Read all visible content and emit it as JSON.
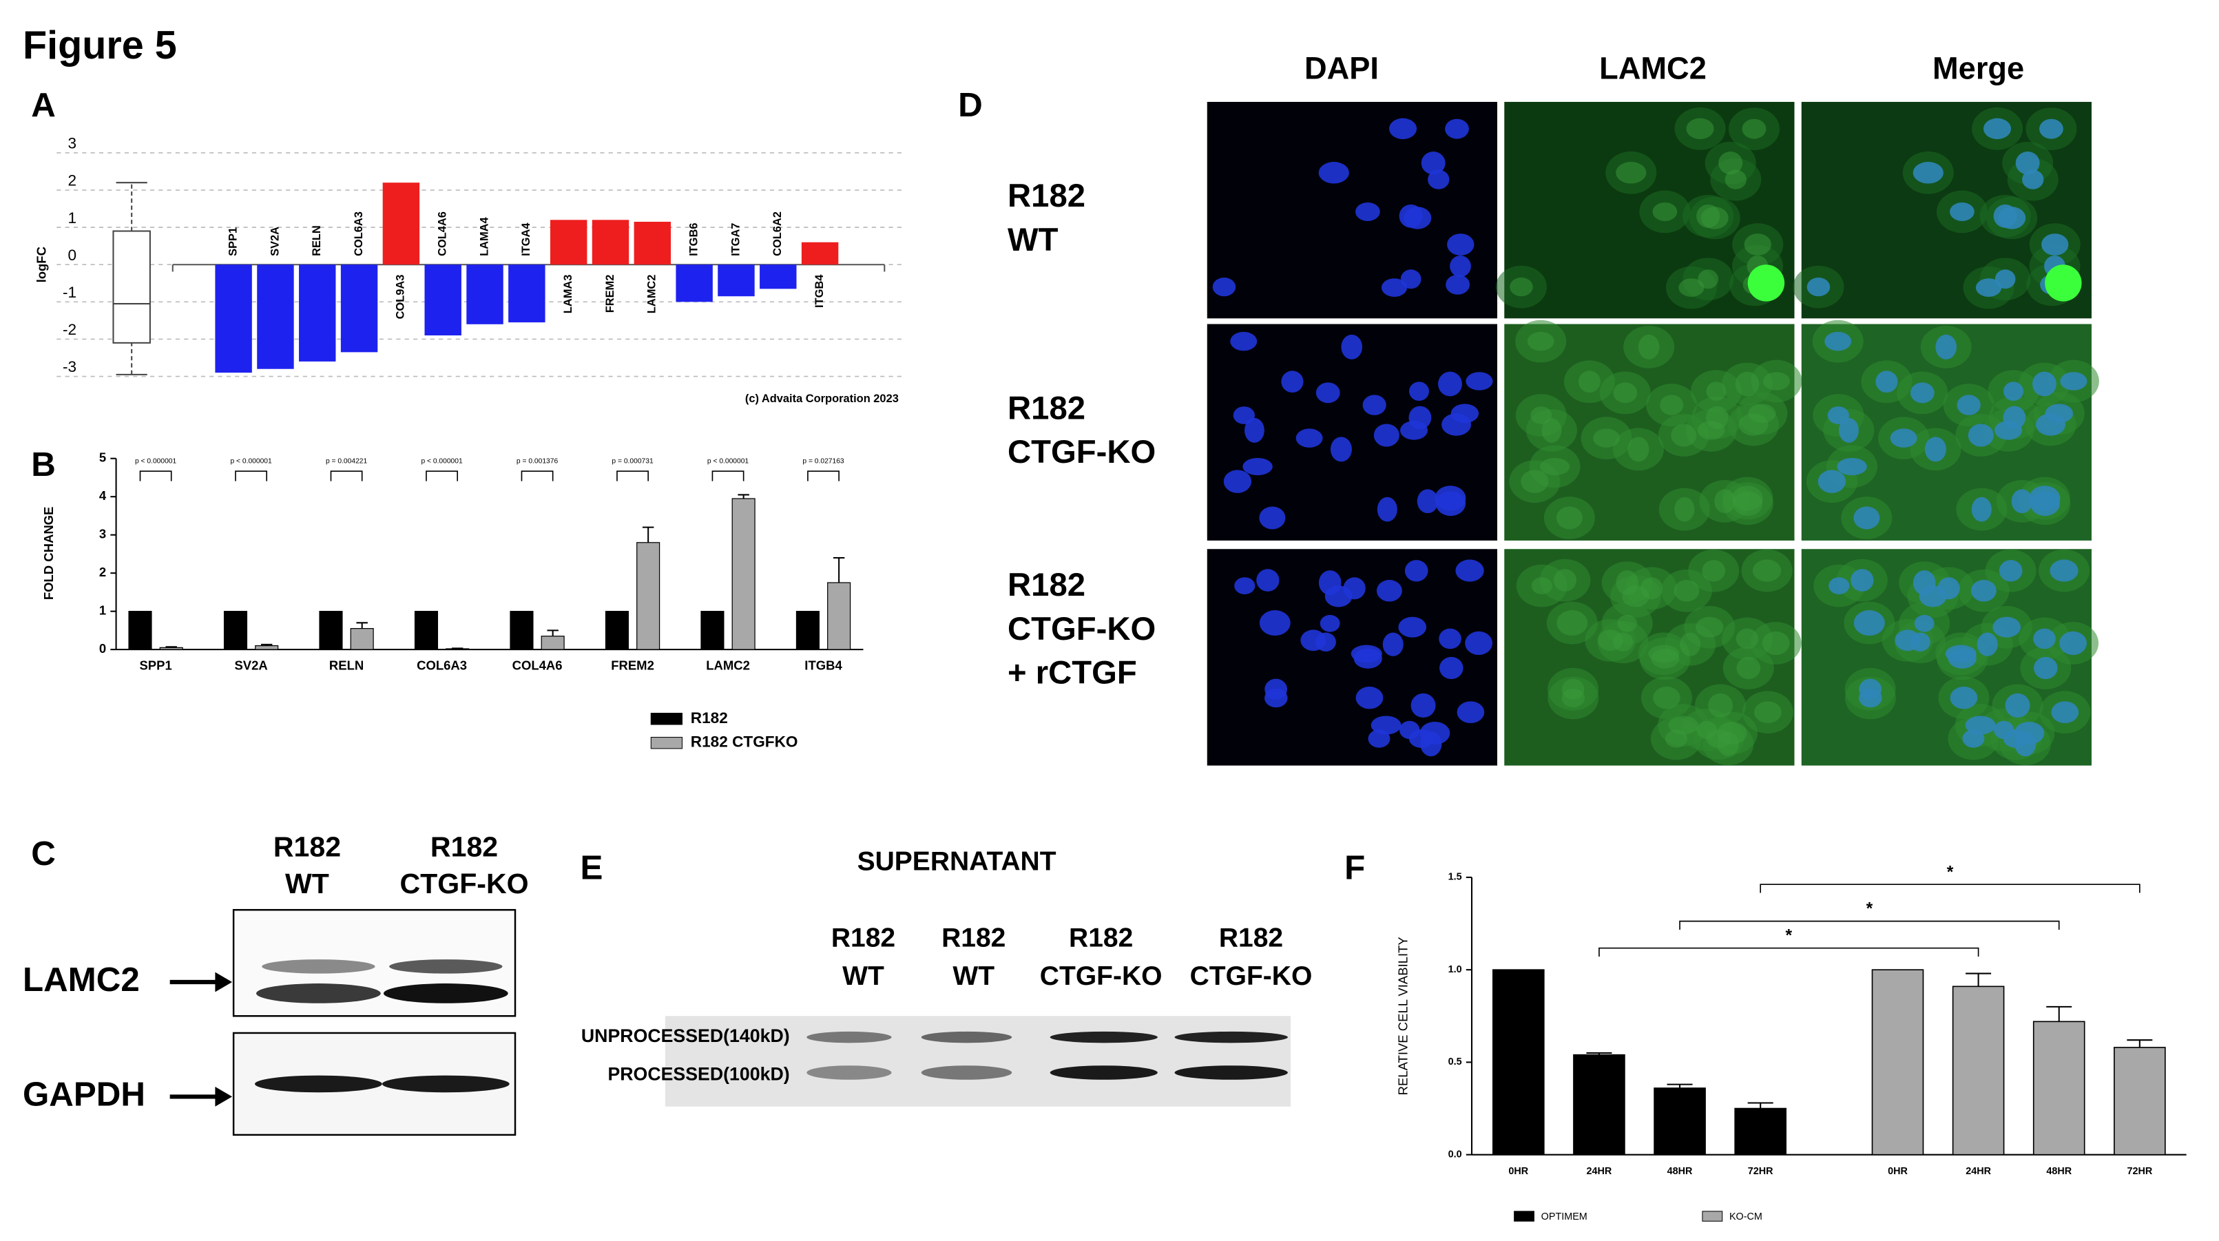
{
  "figure_title": "Figure 5",
  "panels": {
    "a": "A",
    "b": "B",
    "c": "C",
    "d": "D",
    "e": "E",
    "f": "F"
  },
  "chart_data": [
    {
      "type": "bar",
      "ylabel": "logFC",
      "categories": [
        "SPP1",
        "SV2A",
        "RELN",
        "COL6A3",
        "COL9A3",
        "COL4A6",
        "LAMA4",
        "ITGA4",
        "LAMA3",
        "FREM2",
        "LAMC2",
        "ITGB6",
        "ITGA7",
        "COL6A2",
        "ITGB4"
      ],
      "values": [
        -2.9,
        -2.8,
        -2.6,
        -2.35,
        2.2,
        -1.9,
        -1.6,
        -1.55,
        1.2,
        1.2,
        1.15,
        -1.0,
        -0.85,
        -0.65,
        0.6
      ],
      "colors": [
        "#1e22ee",
        "#1e22ee",
        "#1e22ee",
        "#1e22ee",
        "#ee1e1e",
        "#1e22ee",
        "#1e22ee",
        "#1e22ee",
        "#ee1e1e",
        "#ee1e1e",
        "#ee1e1e",
        "#1e22ee",
        "#1e22ee",
        "#1e22ee",
        "#ee1e1e"
      ],
      "ylim": [
        -3,
        3
      ],
      "yticks": [
        3,
        2,
        1,
        0,
        -1,
        -2,
        -3
      ],
      "grid": true,
      "box": {
        "min": -2.95,
        "q1": -2.1,
        "median": -1.05,
        "q3": 0.9,
        "max": 2.2
      },
      "credit": "(c) Advaita Corporation 2023"
    },
    {
      "type": "grouped",
      "ylabel": "FOLD CHANGE",
      "categories": [
        "SPP1",
        "SV2A",
        "RELN",
        "COL6A3",
        "COL4A6",
        "FREM2",
        "LAMC2",
        "ITGB4"
      ],
      "series": [
        {
          "name": "R182",
          "color": "#000000",
          "values": [
            1,
            1,
            1,
            1,
            1,
            1,
            1,
            1
          ]
        },
        {
          "name": "R182 CTGFKO",
          "color": "#a8a8a8",
          "values": [
            0.05,
            0.1,
            0.55,
            0.02,
            0.35,
            2.8,
            3.95,
            1.75
          ],
          "errors": [
            0.02,
            0.03,
            0.15,
            0.01,
            0.15,
            0.4,
            0.1,
            0.65
          ]
        }
      ],
      "pvalues": [
        "p < 0.000001",
        "p < 0.000001",
        "p = 0.004221",
        "p < 0.000001",
        "p = 0.001376",
        "p = 0.000731",
        "p < 0.000001",
        "p = 0.027163"
      ],
      "ylim": [
        0,
        5
      ],
      "yticks": [
        0,
        1,
        2,
        3,
        4,
        5
      ]
    },
    {
      "type": "paired",
      "ylabel": "RELATIVE CELL VIABILITY",
      "categories": [
        "0HR",
        "24HR",
        "48HR",
        "72HR"
      ],
      "series": [
        {
          "name": "OPTIMEM",
          "color": "#000000",
          "values": [
            1.0,
            0.54,
            0.36,
            0.25
          ],
          "errors": [
            0,
            0.01,
            0.02,
            0.03
          ]
        },
        {
          "name": "KO-CM",
          "color": "#a8a8a8",
          "values": [
            1.0,
            0.91,
            0.72,
            0.58
          ],
          "errors": [
            0,
            0.07,
            0.08,
            0.04
          ]
        }
      ],
      "significance": [
        null,
        "*",
        "*",
        "*"
      ],
      "ylim": [
        0,
        1.5
      ],
      "yticks": [
        {
          "value": 0,
          "label": "0.0"
        },
        0.5,
        {
          "value": 1,
          "label": "1.0"
        },
        1.5
      ]
    }
  ],
  "panel_c": {
    "lanes": [
      [
        "R182",
        "WT"
      ],
      [
        "R182",
        "CTGF-KO"
      ]
    ],
    "bands": [
      "LAMC2",
      "GAPDH"
    ]
  },
  "panel_d": {
    "columns": [
      "DAPI",
      "LAMC2",
      "Merge"
    ],
    "rows": [
      [
        "R182",
        "WT"
      ],
      [
        "R182",
        "CTGF-KO"
      ],
      [
        "R182",
        "CTGF-KO",
        "+ rCTGF"
      ]
    ]
  },
  "panel_e": {
    "title": "SUPERNATANT",
    "lanes": [
      [
        "R182",
        "WT"
      ],
      [
        "R182",
        "WT"
      ],
      [
        "R182",
        "CTGF-KO"
      ],
      [
        "R182",
        "CTGF-KO"
      ]
    ],
    "bands": [
      "UNPROCESSED(140kD)",
      "PROCESSED(100kD)"
    ]
  }
}
